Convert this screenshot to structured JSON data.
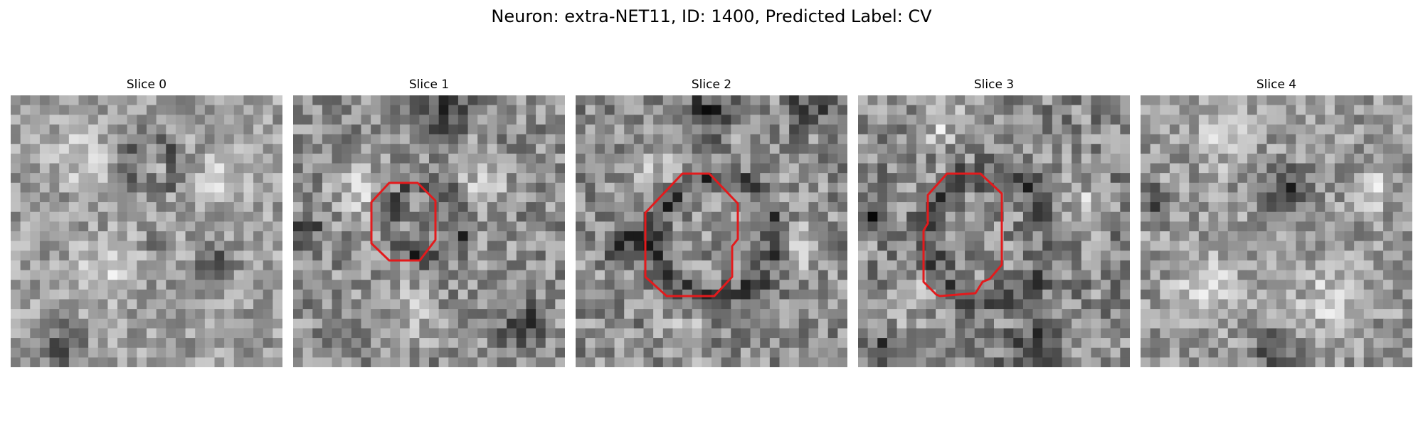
{
  "figure": {
    "title": "Neuron: extra-NET11, ID: 1400, Predicted Label: CV"
  },
  "colors": {
    "background": "#ffffff",
    "contour": "#e31a1c",
    "colormap": "grayscale"
  },
  "slices": [
    {
      "title": "Slice 0",
      "has_contour": false,
      "seed": 11,
      "base": 0.62,
      "contrast": 0.36
    },
    {
      "title": "Slice 1",
      "has_contour": true,
      "seed": 23,
      "base": 0.56,
      "contrast": 0.42
    },
    {
      "title": "Slice 2",
      "has_contour": true,
      "seed": 37,
      "base": 0.55,
      "contrast": 0.44
    },
    {
      "title": "Slice 3",
      "has_contour": true,
      "seed": 41,
      "base": 0.54,
      "contrast": 0.46
    },
    {
      "title": "Slice 4",
      "has_contour": false,
      "seed": 53,
      "base": 0.6,
      "contrast": 0.38
    }
  ]
}
